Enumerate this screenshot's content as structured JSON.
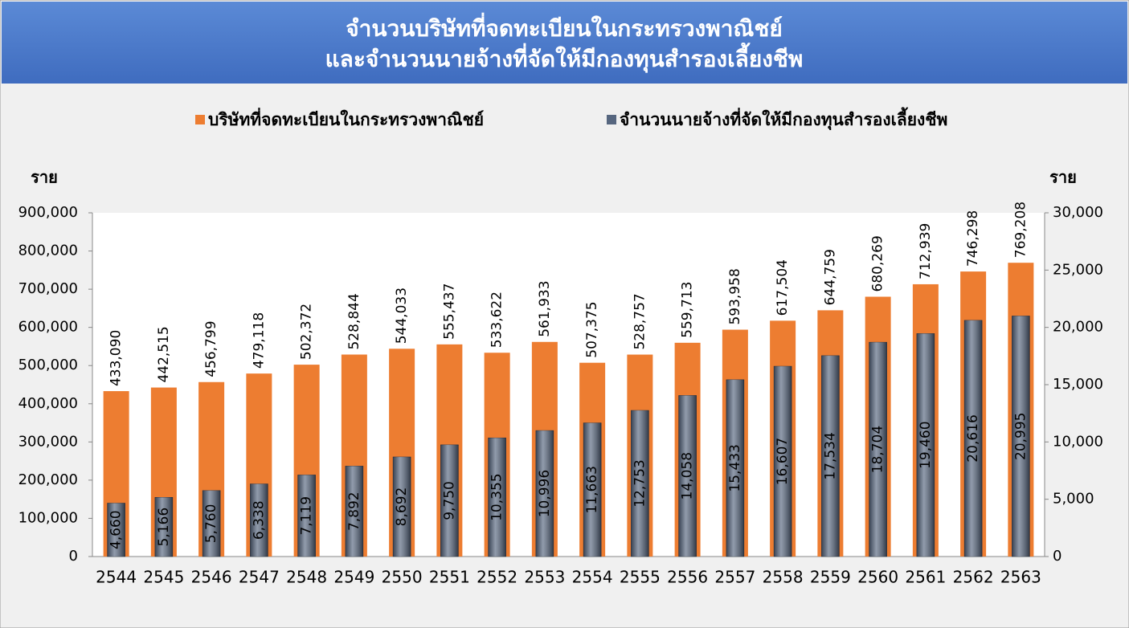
{
  "chart_data": {
    "type": "bar",
    "title": [
      "จำนวนบริษัทที่จดทะเบียนในกระทรวงพาณิชย์",
      "และจำนวนนายจ้างที่จัดให้มีกองทุนสำรองเลี้ยงชีพ"
    ],
    "y_label": "ราย",
    "y2_label": "ราย",
    "legend": "top",
    "grid": false,
    "categories": [
      "2544",
      "2545",
      "2546",
      "2547",
      "2548",
      "2549",
      "2550",
      "2551",
      "2552",
      "2553",
      "2554",
      "2555",
      "2556",
      "2557",
      "2558",
      "2559",
      "2560",
      "2561",
      "2562",
      "2563"
    ],
    "series": [
      {
        "name": "บริษัทที่จดทะเบียนในกระทรวงพาณิชย์",
        "color": "#ed7d31",
        "values": [
          433090,
          442515,
          456799,
          479118,
          502372,
          528844,
          544033,
          555437,
          533622,
          561933,
          507375,
          528757,
          559713,
          593958,
          617504,
          644759,
          680269,
          712939,
          746298,
          769208
        ],
        "value_labels": [
          "433,090",
          "442,515",
          "456,799",
          "479,118",
          "502,372",
          "528,844",
          "544,033",
          "555,437",
          "533,622",
          "561,933",
          "507,375",
          "528,757",
          "559,713",
          "593,958",
          "617,504",
          "644,759",
          "680,269",
          "712,939",
          "746,298",
          "769,208"
        ]
      },
      {
        "name": "จำนวนนายจ้างที่จัดให้มีกองทุนสำรองเลี้ยงชีพ",
        "color": "#56667f",
        "axis": "y2",
        "values": [
          4660,
          5166,
          5760,
          6338,
          7119,
          7892,
          8692,
          9750,
          10355,
          10996,
          11663,
          12753,
          14058,
          15433,
          16607,
          17534,
          18704,
          19460,
          20616,
          20995
        ],
        "value_labels": [
          "4,660",
          "5,166",
          "5,760",
          "6,338",
          "7,119",
          "7,892",
          "8,692",
          "9,750",
          "10,355",
          "10,996",
          "11,663",
          "12,753",
          "14,058",
          "15,433",
          "16,607",
          "17,534",
          "18,704",
          "19,460",
          "20,616",
          "20,995"
        ]
      }
    ],
    "ylim": [
      0,
      900000
    ],
    "yticks": [
      0,
      {
        "value": 100000,
        "label": "100,000"
      },
      {
        "value": 200000,
        "label": "200,000"
      },
      {
        "value": 300000,
        "label": "300,000"
      },
      {
        "value": 400000,
        "label": "400,000"
      },
      {
        "value": 500000,
        "label": "500,000"
      },
      {
        "value": 600000,
        "label": "600,000"
      },
      {
        "value": 700000,
        "label": "700,000"
      },
      {
        "value": 800000,
        "label": "800,000"
      },
      {
        "value": 900000,
        "label": "900,000"
      }
    ],
    "y2lim": [
      0,
      30000
    ],
    "y2ticks": [
      0,
      {
        "value": 5000,
        "label": "5,000"
      },
      {
        "value": 10000,
        "label": "10,000"
      },
      {
        "value": 15000,
        "label": "15,000"
      },
      {
        "value": 20000,
        "label": "20,000"
      },
      {
        "value": 25000,
        "label": "25,000"
      },
      {
        "value": 30000,
        "label": "30,000"
      }
    ]
  }
}
